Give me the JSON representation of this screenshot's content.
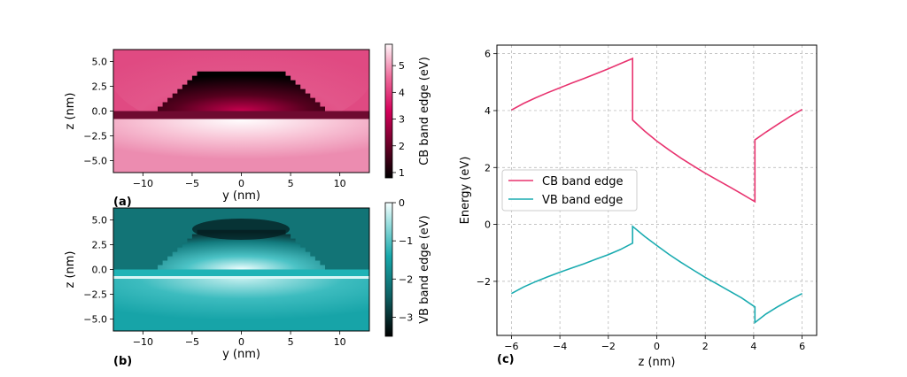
{
  "panel_labels": {
    "a": "(a)",
    "b": "(b)",
    "c": "(c)"
  },
  "colors": {
    "cb_line": "#e8336f",
    "vb_line": "#1aabb0",
    "cb_map_low": "#1a0008",
    "cb_map_mid": "#c4004f",
    "cb_map_high": "#fff5f8",
    "vb_map_low": "#000000",
    "vb_map_mid": "#17a2a6",
    "vb_map_high": "#f5ffff",
    "grid": "#b0b0b0"
  },
  "chart_data": [
    {
      "id": "a",
      "type": "heatmap",
      "title": "",
      "xlabel": "y (nm)",
      "ylabel": "z (nm)",
      "xlim": [
        -13,
        13
      ],
      "ylim": [
        -6.2,
        6.2
      ],
      "x_ticks": [
        -10,
        -5,
        0,
        5,
        10
      ],
      "y_ticks": [
        -5.0,
        -2.5,
        0.0,
        2.5,
        5.0
      ],
      "x_tick_labels": [
        "−10",
        "−5",
        "0",
        "5",
        "10"
      ],
      "y_tick_labels": [
        "−5.0",
        "−2.5",
        "0.0",
        "2.5",
        "5.0"
      ],
      "colorbar": {
        "label": "CB band edge (eV)",
        "range": [
          0.8,
          5.8
        ],
        "ticks": [
          1,
          2,
          3,
          4,
          5
        ],
        "tick_labels": [
          "1",
          "2",
          "3",
          "4",
          "5"
        ]
      },
      "regions": {
        "wetting_layer_z": [
          -0.8,
          0.0
        ],
        "dot_top_z": 4.0,
        "dot_top_half_width": 4.0,
        "dot_base_half_width": 8.5
      }
    },
    {
      "id": "b",
      "type": "heatmap",
      "title": "",
      "xlabel": "y (nm)",
      "ylabel": "z (nm)",
      "xlim": [
        -13,
        13
      ],
      "ylim": [
        -6.2,
        6.2
      ],
      "x_ticks": [
        -10,
        -5,
        0,
        5,
        10
      ],
      "y_ticks": [
        -5.0,
        -2.5,
        0.0,
        2.5,
        5.0
      ],
      "x_tick_labels": [
        "−10",
        "−5",
        "0",
        "5",
        "10"
      ],
      "y_tick_labels": [
        "−5.0",
        "−2.5",
        "0.0",
        "2.5",
        "5.0"
      ],
      "colorbar": {
        "label": "VB band edge (eV)",
        "range": [
          -3.5,
          0.0
        ],
        "ticks": [
          -3,
          -2,
          -1,
          0
        ],
        "tick_labels": [
          "−3",
          "−2",
          "−1",
          "0"
        ]
      },
      "regions": {
        "wetting_layer_z": [
          -0.8,
          0.0
        ],
        "dot_top_z": 4.0,
        "dot_top_half_width": 4.0,
        "dot_base_half_width": 8.5
      }
    },
    {
      "id": "c",
      "type": "line",
      "title": "",
      "xlabel": "z (nm)",
      "ylabel": "Energy (eV)",
      "xlim": [
        -6.6,
        6.6
      ],
      "ylim": [
        -3.9,
        6.3
      ],
      "x_ticks": [
        -6,
        -4,
        -2,
        0,
        2,
        4,
        6
      ],
      "y_ticks": [
        -2,
        0,
        2,
        4,
        6
      ],
      "x_tick_labels": [
        "−6",
        "−4",
        "−2",
        "0",
        "2",
        "4",
        "6"
      ],
      "y_tick_labels": [
        "−2",
        "0",
        "2",
        "4",
        "6"
      ],
      "grid": true,
      "legend": "center-left",
      "series": [
        {
          "name": "CB band edge",
          "x": [
            -6,
            -5.5,
            -5,
            -4.5,
            -4,
            -3.5,
            -3,
            -2.5,
            -2,
            -1.5,
            -1.0,
            -1.0,
            -0.5,
            0,
            0.5,
            1,
            1.5,
            2,
            2.5,
            3,
            3.5,
            4.05,
            4.05,
            4.5,
            5,
            5.5,
            6
          ],
          "y": [
            4.02,
            4.25,
            4.45,
            4.63,
            4.8,
            4.97,
            5.13,
            5.3,
            5.47,
            5.65,
            5.83,
            3.67,
            3.28,
            2.93,
            2.62,
            2.33,
            2.06,
            1.8,
            1.56,
            1.32,
            1.08,
            0.8,
            2.97,
            3.24,
            3.52,
            3.79,
            4.04
          ]
        },
        {
          "name": "VB band edge",
          "x": [
            -6,
            -5.5,
            -5,
            -4.5,
            -4,
            -3.5,
            -3,
            -2.5,
            -2,
            -1.5,
            -1.0,
            -1.0,
            -0.5,
            0,
            0.5,
            1,
            1.5,
            2,
            2.5,
            3,
            3.5,
            4.05,
            4.05,
            4.5,
            5,
            5.5,
            6
          ],
          "y": [
            -2.43,
            -2.2,
            -2.01,
            -1.84,
            -1.68,
            -1.53,
            -1.38,
            -1.22,
            -1.06,
            -0.88,
            -0.66,
            -0.07,
            -0.42,
            -0.74,
            -1.05,
            -1.33,
            -1.6,
            -1.86,
            -2.1,
            -2.34,
            -2.58,
            -2.9,
            -3.45,
            -3.15,
            -2.89,
            -2.65,
            -2.43
          ]
        }
      ]
    }
  ]
}
